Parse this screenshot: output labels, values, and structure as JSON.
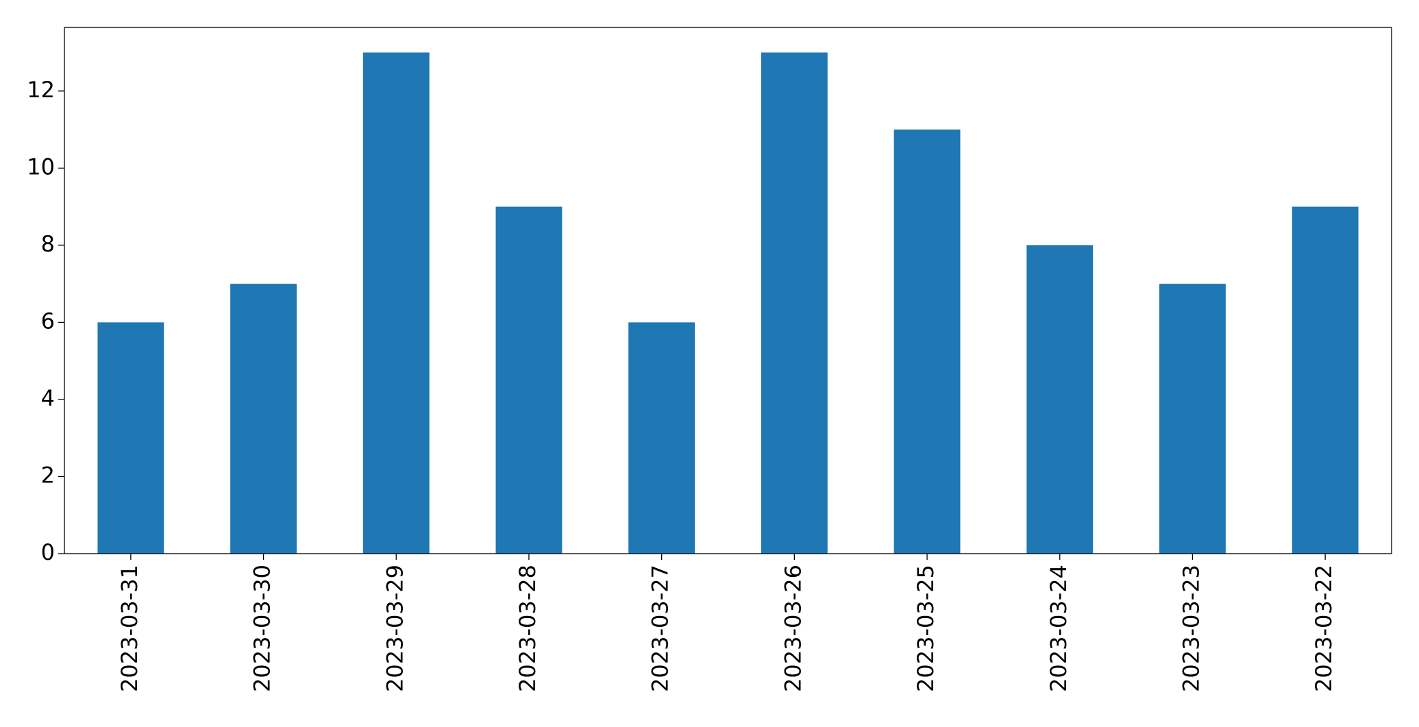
{
  "chart_data": {
    "type": "bar",
    "categories": [
      "2023-03-31",
      "2023-03-30",
      "2023-03-29",
      "2023-03-28",
      "2023-03-27",
      "2023-03-26",
      "2023-03-25",
      "2023-03-24",
      "2023-03-23",
      "2023-03-22"
    ],
    "values": [
      6,
      7,
      13,
      9,
      6,
      13,
      11,
      8,
      7,
      9
    ],
    "color": "#1f77b4",
    "ylim": [
      0,
      13.65
    ],
    "yticks": [
      0,
      2,
      4,
      6,
      8,
      10,
      12
    ],
    "grid": false
  }
}
